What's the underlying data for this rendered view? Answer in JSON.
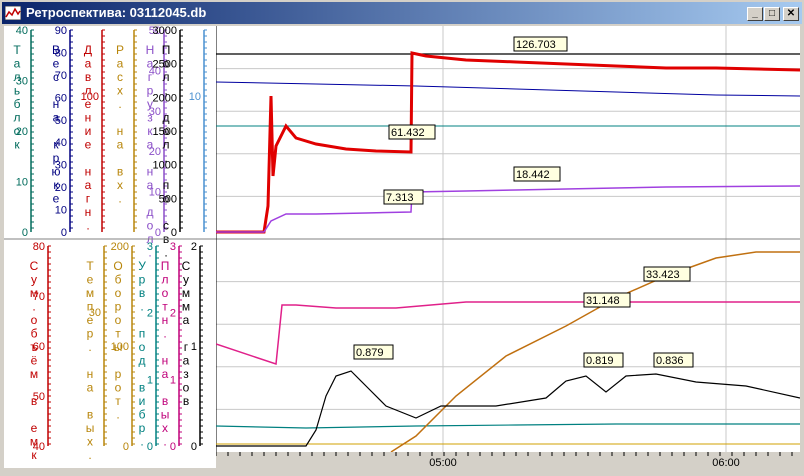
{
  "window": {
    "title": "Ретроспектива: 03112045.db",
    "buttons": {
      "minimize": "_",
      "maximize": "□",
      "close": "✕"
    }
  },
  "upper_panel": {
    "scales": [
      {
        "id": "u1",
        "label": "Тальблок",
        "color": "#006b5c",
        "ticks": [
          "40",
          "30",
          "20",
          "10",
          "0"
        ]
      },
      {
        "id": "u2",
        "label": "Вес на крюке",
        "color": "#000080",
        "ticks": [
          "90",
          "80",
          "70",
          "60",
          "50",
          "40",
          "30",
          "20",
          "10",
          "0"
        ]
      },
      {
        "id": "u3",
        "label": "Давление нагн.",
        "color": "#c00000",
        "ticks": [
          "100"
        ]
      },
      {
        "id": "u4",
        "label": "Расх. на вх.",
        "color": "#b8860b",
        "ticks": []
      },
      {
        "id": "u5",
        "label": "Нагрузка на дол.",
        "color": "#8b4fc8",
        "ticks": [
          "50",
          "40",
          "30",
          "20",
          "10",
          "0"
        ]
      },
      {
        "id": "u6",
        "label": "Пол. дол. по св.",
        "color": "#000000",
        "ticks": [
          "3000",
          "2500",
          "2000",
          "1500",
          "1000",
          "500",
          "0"
        ]
      },
      {
        "id": "u7",
        "label": "",
        "color": "#4a90d0",
        "ticks": [
          "10"
        ]
      }
    ],
    "value_labels": [
      "126.703",
      "61.432",
      "18.442",
      "7.313"
    ]
  },
  "lower_panel": {
    "scales": [
      {
        "id": "l1",
        "label": "Сум.объём в емк.",
        "color": "#c00000",
        "ticks": [
          "80",
          "70",
          "60",
          "50",
          "40"
        ]
      },
      {
        "id": "l2",
        "label": "Темпер. на вых.",
        "color": "#b8860b",
        "ticks": [
          "30"
        ]
      },
      {
        "id": "l3",
        "label": "Обороты рот.",
        "color": "#b8860b",
        "ticks": [
          "200",
          "100",
          "0"
        ]
      },
      {
        "id": "l4",
        "label": "Урв. под вибр.",
        "color": "#008080",
        "ticks": [
          "3",
          "2",
          "1",
          "0"
        ]
      },
      {
        "id": "l5",
        "label": "Плотн. на вых.",
        "color": "#c0007a",
        "ticks": [
          "3",
          "2",
          "1",
          "0"
        ]
      },
      {
        "id": "l6",
        "label": "Сумма газов",
        "color": "#000000",
        "ticks": [
          "2",
          "1",
          "0"
        ]
      }
    ],
    "value_labels": [
      "33.423",
      "31.148",
      "0.879",
      "0.819",
      "0.836"
    ]
  },
  "time_axis": {
    "labels": [
      "05:00",
      "06:00"
    ]
  }
}
